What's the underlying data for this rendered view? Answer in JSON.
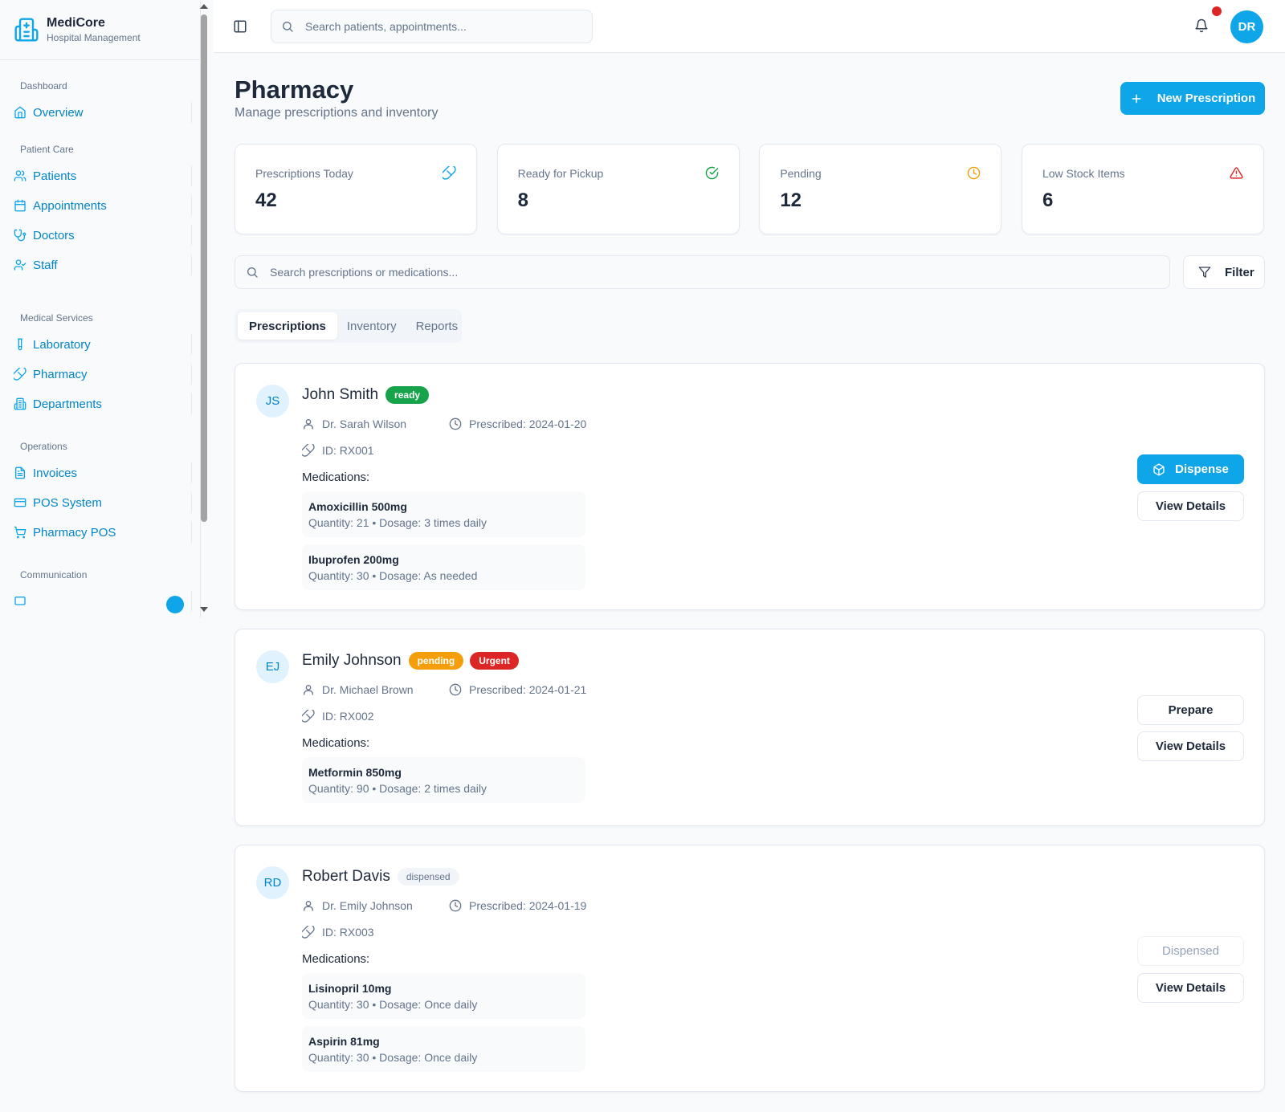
{
  "brand": {
    "name": "MediCore",
    "subtitle": "Hospital Management"
  },
  "sidebar": {
    "sections": [
      {
        "title": "Dashboard",
        "items": [
          {
            "label": "Overview",
            "icon": "home-icon"
          }
        ]
      },
      {
        "title": "Patient Care",
        "items": [
          {
            "label": "Patients",
            "icon": "users-icon"
          },
          {
            "label": "Appointments",
            "icon": "calendar-icon"
          },
          {
            "label": "Doctors",
            "icon": "stethoscope-icon"
          },
          {
            "label": "Staff",
            "icon": "user-check-icon"
          }
        ]
      },
      {
        "title": "Medical Services",
        "items": [
          {
            "label": "Laboratory",
            "icon": "test-tube-icon"
          },
          {
            "label": "Pharmacy",
            "icon": "pill-icon"
          },
          {
            "label": "Departments",
            "icon": "building-icon"
          }
        ]
      },
      {
        "title": "Operations",
        "items": [
          {
            "label": "Invoices",
            "icon": "file-text-icon"
          },
          {
            "label": "POS System",
            "icon": "credit-card-icon"
          },
          {
            "label": "Pharmacy POS",
            "icon": "shopping-cart-icon"
          }
        ]
      },
      {
        "title": "Communication",
        "items": []
      }
    ]
  },
  "topbar": {
    "search_placeholder": "Search patients, appointments...",
    "avatar_initials": "DR"
  },
  "page": {
    "title": "Pharmacy",
    "subtitle": "Manage prescriptions and inventory",
    "new_button": "New Prescription",
    "search_placeholder": "Search prescriptions or medications...",
    "filter_label": "Filter"
  },
  "stats": [
    {
      "label": "Prescriptions Today",
      "value": "42",
      "icon": "pill-icon",
      "color": "#0ea5e9"
    },
    {
      "label": "Ready for Pickup",
      "value": "8",
      "icon": "check-circle-icon",
      "color": "#16a34a"
    },
    {
      "label": "Pending",
      "value": "12",
      "icon": "clock-icon",
      "color": "#f59e0b"
    },
    {
      "label": "Low Stock Items",
      "value": "6",
      "icon": "alert-triangle-icon",
      "color": "#dc2626"
    }
  ],
  "tabs": [
    "Prescriptions",
    "Inventory",
    "Reports"
  ],
  "prescriptions": [
    {
      "initials": "JS",
      "name": "John Smith",
      "status": "ready",
      "urgent": "",
      "doctor": "Dr. Sarah Wilson",
      "prescribed": "Prescribed: 2024-01-20",
      "id": "ID: RX001",
      "meds_label": "Medications:",
      "meds": [
        {
          "name": "Amoxicillin 500mg",
          "info": "Quantity: 21 • Dosage: 3 times daily"
        },
        {
          "name": "Ibuprofen 200mg",
          "info": "Quantity: 30 • Dosage: As needed"
        }
      ],
      "primary_action": "Dispense",
      "secondary_action": "View Details"
    },
    {
      "initials": "EJ",
      "name": "Emily Johnson",
      "status": "pending",
      "urgent": "Urgent",
      "doctor": "Dr. Michael Brown",
      "prescribed": "Prescribed: 2024-01-21",
      "id": "ID: RX002",
      "meds_label": "Medications:",
      "meds": [
        {
          "name": "Metformin 850mg",
          "info": "Quantity: 90 • Dosage: 2 times daily"
        }
      ],
      "primary_action": "Prepare",
      "secondary_action": "View Details"
    },
    {
      "initials": "RD",
      "name": "Robert Davis",
      "status": "dispensed",
      "urgent": "",
      "doctor": "Dr. Emily Johnson",
      "prescribed": "Prescribed: 2024-01-19",
      "id": "ID: RX003",
      "meds_label": "Medications:",
      "meds": [
        {
          "name": "Lisinopril 10mg",
          "info": "Quantity: 30 • Dosage: Once daily"
        },
        {
          "name": "Aspirin 81mg",
          "info": "Quantity: 30 • Dosage: Once daily"
        }
      ],
      "primary_action": "Dispensed",
      "secondary_action": "View Details"
    }
  ]
}
